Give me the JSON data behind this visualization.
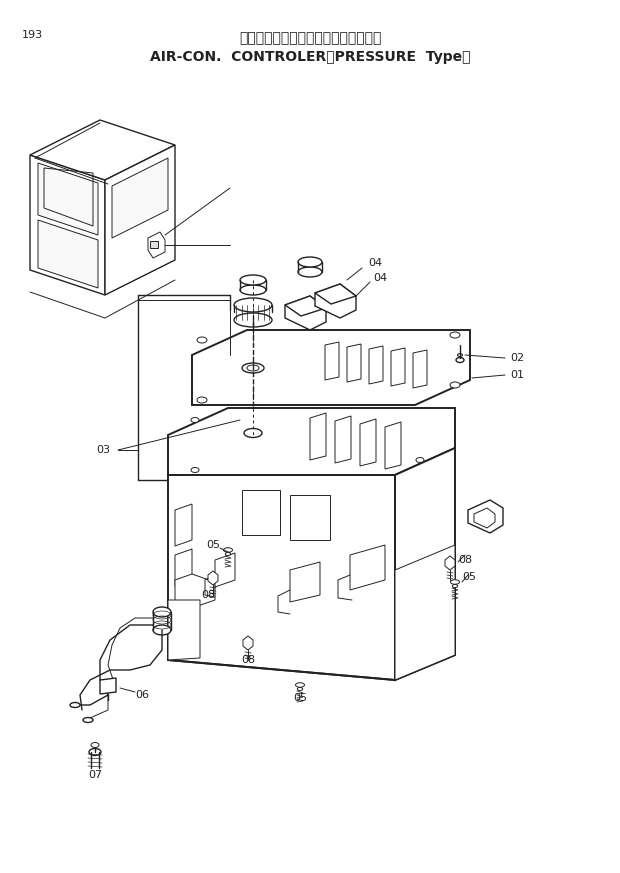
{
  "title_line1": "エアコンコントローラ〈外気導入式〉",
  "title_line2": "AIR-CON.  CONTROLER 〈PRESSURE  Type〉",
  "page_number": "193",
  "bg": "#ffffff",
  "lc": "#222222",
  "lw": 1.0,
  "lw2": 0.7,
  "lw3": 1.4
}
